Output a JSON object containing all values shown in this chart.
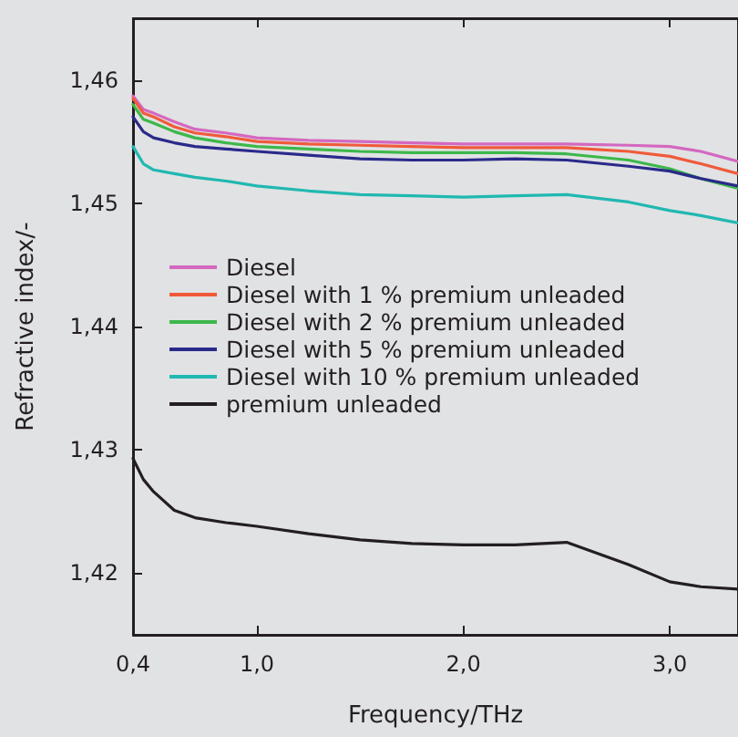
{
  "chart_data": {
    "type": "line",
    "xlabel": "Frequency/THz",
    "ylabel": "Refractive index/-",
    "xlim": [
      0.4,
      3.33
    ],
    "ylim": [
      1.415,
      1.465
    ],
    "xticks": [
      {
        "value": 0.4,
        "label": "0,4"
      },
      {
        "value": 1.0,
        "label": "1,0"
      },
      {
        "value": 2.0,
        "label": "2,0"
      },
      {
        "value": 3.0,
        "label": "3,0"
      }
    ],
    "yticks": [
      {
        "value": 1.42,
        "label": "1,42"
      },
      {
        "value": 1.43,
        "label": "1,43"
      },
      {
        "value": 1.44,
        "label": "1,44"
      },
      {
        "value": 1.45,
        "label": "1,45"
      },
      {
        "value": 1.46,
        "label": "1,46"
      }
    ],
    "x": [
      0.4,
      0.45,
      0.5,
      0.6,
      0.7,
      0.85,
      1.0,
      1.25,
      1.5,
      1.75,
      2.0,
      2.25,
      2.5,
      2.8,
      3.0,
      3.15,
      3.33
    ],
    "grid": false,
    "legend": "left",
    "marker": "none",
    "line_style": "solid",
    "series": [
      {
        "name": "Diesel",
        "color": "#d468c0",
        "values": [
          1.4587,
          1.4576,
          1.4573,
          1.4566,
          1.456,
          1.4557,
          1.4553,
          1.4551,
          1.455,
          1.4549,
          1.4548,
          1.4548,
          1.4548,
          1.4547,
          1.4546,
          1.4542,
          1.4534
        ]
      },
      {
        "name": "Diesel with 1 % premium unleaded",
        "color": "#f05a3a",
        "values": [
          1.4585,
          1.4573,
          1.457,
          1.4562,
          1.4557,
          1.4554,
          1.455,
          1.4548,
          1.4547,
          1.4546,
          1.4545,
          1.4545,
          1.4545,
          1.4542,
          1.4538,
          1.4532,
          1.4524
        ]
      },
      {
        "name": "Diesel with 2 % premium unleaded",
        "color": "#3cb84a",
        "values": [
          1.458,
          1.4568,
          1.4565,
          1.4558,
          1.4553,
          1.4549,
          1.4546,
          1.4544,
          1.4542,
          1.4541,
          1.4541,
          1.4541,
          1.454,
          1.4535,
          1.4528,
          1.452,
          1.4512
        ]
      },
      {
        "name": "Diesel with 5 % premium unleaded",
        "color": "#2a2a8a",
        "values": [
          1.457,
          1.4558,
          1.4553,
          1.4549,
          1.4546,
          1.4544,
          1.4542,
          1.4539,
          1.4536,
          1.4535,
          1.4535,
          1.4536,
          1.4535,
          1.453,
          1.4526,
          1.452,
          1.4514
        ]
      },
      {
        "name": "Diesel with 10 % premium unleaded",
        "color": "#20b8b0",
        "values": [
          1.4546,
          1.4532,
          1.4527,
          1.4524,
          1.4521,
          1.4518,
          1.4514,
          1.451,
          1.4507,
          1.4506,
          1.4505,
          1.4506,
          1.4507,
          1.4501,
          1.4494,
          1.449,
          1.4484
        ]
      },
      {
        "name": "premium unleaded",
        "color": "#231f20",
        "values": [
          1.4293,
          1.4276,
          1.4266,
          1.4251,
          1.4245,
          1.4241,
          1.4238,
          1.4232,
          1.4227,
          1.4224,
          1.4223,
          1.4223,
          1.4225,
          1.4207,
          1.4193,
          1.4189,
          1.4187
        ]
      }
    ]
  }
}
